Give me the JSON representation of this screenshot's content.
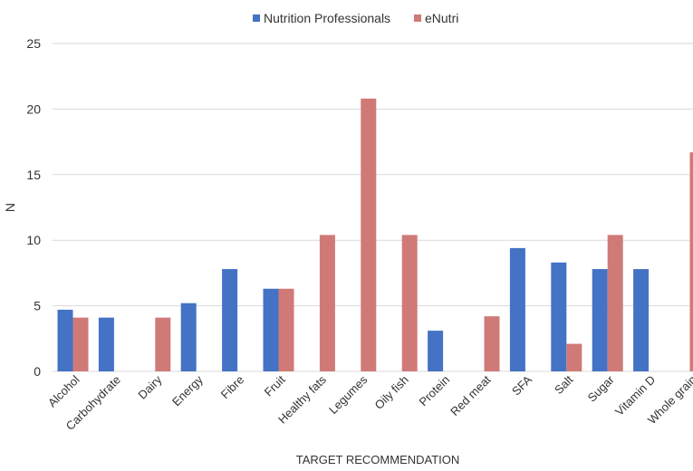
{
  "chart_data": {
    "type": "bar",
    "xlabel": "TARGET RECOMMENDATION",
    "ylabel": "N",
    "ylim": [
      0,
      25
    ],
    "yticks": [
      0,
      5,
      10,
      15,
      20,
      25
    ],
    "grid": true,
    "legend_position": "top",
    "categories": [
      "Alcohol",
      "Carbohydrate",
      "Dairy",
      "Energy",
      "Fibre",
      "Fruit",
      "Healthy fats",
      "Legumes",
      "Oily fish",
      "Protein",
      "Red meat",
      "SFA",
      "Salt",
      "Sugar",
      "Vitamin D",
      "Whole grain"
    ],
    "series": [
      {
        "name": "Nutrition Professionals",
        "color": "#4472c4",
        "values": [
          4.7,
          4.1,
          0,
          5.2,
          7.8,
          6.3,
          0,
          0,
          0,
          3.1,
          0,
          9.4,
          8.3,
          7.8,
          7.8,
          0
        ]
      },
      {
        "name": "eNutri",
        "color": "#d07a78",
        "values": [
          4.1,
          0,
          4.1,
          0,
          0,
          6.3,
          10.4,
          20.8,
          10.4,
          0,
          4.2,
          0,
          2.1,
          10.4,
          0,
          16.7
        ]
      }
    ]
  }
}
